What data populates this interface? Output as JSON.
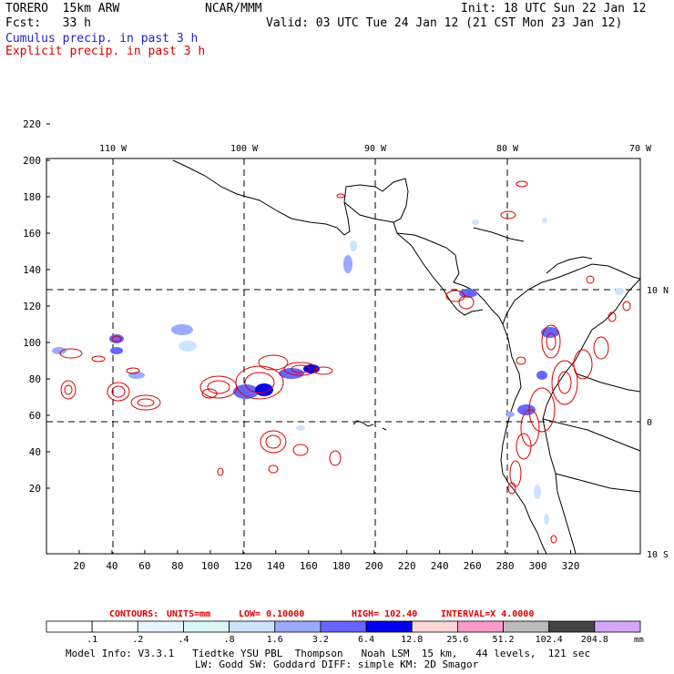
{
  "header": {
    "model": "TORERO  15km ARW",
    "org": "NCAR/MMM",
    "init": "Init: 18 UTC Sun 22 Jan 12",
    "fcst": "Fcst:   33 h",
    "valid": "Valid: 03 UTC Tue 24 Jan 12 (21 CST Mon 23 Jan 12)",
    "cumulus": "Cumulus precip. in past 3 h",
    "explicit": "Explicit precip. in past 3 h"
  },
  "colors": {
    "cumulus": "#2222cc",
    "explicit": "#dd0000",
    "frame": "#000000"
  },
  "map": {
    "x_ticks": [
      "20",
      "40",
      "60",
      "80",
      "100",
      "120",
      "140",
      "160",
      "180",
      "200",
      "220",
      "240",
      "260",
      "280",
      "300",
      "320"
    ],
    "y_ticks": [
      "20",
      "40",
      "60",
      "80",
      "100",
      "120",
      "140",
      "160",
      "180",
      "200",
      "220"
    ],
    "lon_labels": [
      "110 W",
      "100 W",
      "90 W",
      "80 W",
      "70 W"
    ],
    "lat_labels": [
      "10 N",
      "0",
      "10 S"
    ]
  },
  "contours_line": {
    "title": "CONTOURS:",
    "units": "UNITS=mm",
    "low": "LOW= 0.10000",
    "high": "HIGH=  102.40",
    "interval": "INTERVAL=X  4.0000"
  },
  "colorbar": {
    "labels": [
      ".1",
      ".2",
      ".4",
      ".8",
      "1.6",
      "3.2",
      "6.4",
      "12.8",
      "25.6",
      "51.2",
      "102.4",
      "204.8"
    ],
    "unit": "mm",
    "colors": [
      "#ffffff",
      "#ffffff",
      "#eaf4ff",
      "#daf7f7",
      "#cce4ff",
      "#99aaff",
      "#6666ff",
      "#0000ee",
      "#ffd6d6",
      "#ff99cc",
      "#bbbbbb",
      "#444444",
      "#d6a6ff"
    ]
  },
  "footer": {
    "line1": "Model Info: V3.3.1   Tiedtke YSU PBL  Thompson   Noah LSM  15 km,   44 levels,  121 sec",
    "line2": "LW: Godd SW: Goddard DIFF: simple KM: 2D Smagor"
  }
}
